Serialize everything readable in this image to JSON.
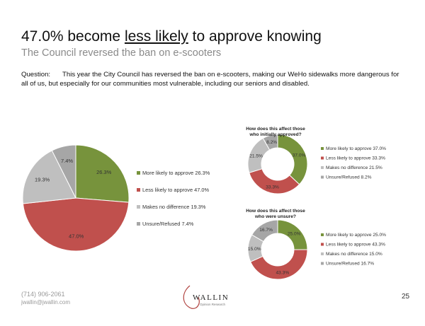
{
  "header": {
    "title_pre": "47.0% become ",
    "title_underlined": "less likely",
    "title_post": " to approve knowing",
    "subtitle": "The Council reversed the ban on e-scooters"
  },
  "question": {
    "label": "Question:",
    "text": "This year the City Council has reversed the ban on e-scooters, making our WeHo sidewalks more dangerous for all of us, but especially for our communities most vulnerable, including our seniors and disabled."
  },
  "colors": {
    "more_likely": "#77933c",
    "less_likely": "#c0504d",
    "no_difference": "#bfbfbf",
    "unsure": "#a6a6a6"
  },
  "chart_data": [
    {
      "type": "pie",
      "title": "",
      "categories": [
        "More likely to approve",
        "Less likely to approve",
        "Makes no difference",
        "Unsure/Refused"
      ],
      "values": [
        26.3,
        47.0,
        19.3,
        7.4
      ],
      "data_labels": [
        "26.3%",
        "47.0%",
        "19.3%",
        "7.4%"
      ],
      "legend": [
        "More likely to approve 26.3%",
        "Less likely to approve 47.0%",
        "Makes no difference 19.3%",
        "Unsure/Refused 7.4%"
      ],
      "legend_position": "right"
    },
    {
      "type": "pie",
      "title": "How does this affect those who initially approved?",
      "title_lines": [
        "How does this affect those",
        "who initially approved?"
      ],
      "categories": [
        "More likely to approve",
        "Less likely to approve",
        "Makes no difference",
        "Unsure/Refused"
      ],
      "values": [
        37.0,
        33.3,
        21.5,
        8.2
      ],
      "data_labels": [
        "37.0%",
        "33.3%",
        "21.5%",
        "8.2%"
      ],
      "legend": [
        "More likely to approve 37.0%",
        "Less likely to approve 33.3%",
        "Makes no difference 21.5%",
        "Unsure/Refused 8.2%"
      ],
      "legend_position": "right"
    },
    {
      "type": "pie",
      "title": "How does this affect those who were unsure?",
      "title_lines": [
        "How does this affect those",
        "who were unsure?"
      ],
      "categories": [
        "More likely to approve",
        "Less likely to approve",
        "Makes no difference",
        "Unsure/Refused"
      ],
      "values": [
        25.0,
        43.3,
        15.0,
        16.7
      ],
      "data_labels": [
        "25.0%",
        "43.3%",
        "15.0%",
        "16.7%"
      ],
      "legend": [
        "More likely to approve 25.0%",
        "Less likely to approve 43.3%",
        "Makes no difference 15.0%",
        "Unsure/Refused 16.7%"
      ],
      "legend_position": "right"
    }
  ],
  "footer": {
    "phone": "(714) 906-2061",
    "email": "jwallin@jwallin.com",
    "logo_name": "WALLIN",
    "logo_sub": "Opinion Research",
    "page_number": "25"
  }
}
